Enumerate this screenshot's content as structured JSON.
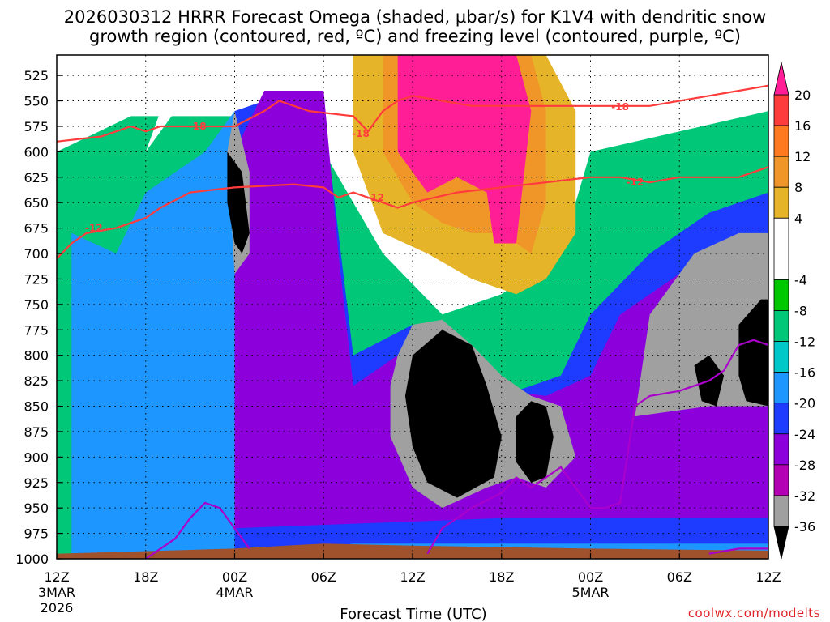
{
  "chart_data": {
    "type": "heatmap",
    "title_line1": "2026030312 HRRR Forecast Omega (shaded, µbar/s) for K1V4 with dendritic snow",
    "title_line2": "growth region (contoured, red, ºC) and freezing level (contoured, purple, ºC)",
    "xlabel": "Forecast Time (UTC)",
    "ylabel": "",
    "credit": "coolwx.com/modelts",
    "y_axis": {
      "reversed": true,
      "ylim": [
        1000,
        505
      ],
      "ticks": [
        525,
        550,
        575,
        600,
        625,
        650,
        675,
        700,
        725,
        750,
        775,
        800,
        825,
        850,
        875,
        900,
        925,
        950,
        975,
        1000
      ]
    },
    "x_axis": {
      "xlim_hours": [
        0,
        48
      ],
      "ticks": [
        {
          "hour": 0,
          "label": "12Z",
          "sub1": "3MAR",
          "sub2": "2026"
        },
        {
          "hour": 6,
          "label": "18Z",
          "sub1": "",
          "sub2": ""
        },
        {
          "hour": 12,
          "label": "00Z",
          "sub1": "4MAR",
          "sub2": ""
        },
        {
          "hour": 18,
          "label": "06Z",
          "sub1": "",
          "sub2": ""
        },
        {
          "hour": 24,
          "label": "12Z",
          "sub1": "",
          "sub2": ""
        },
        {
          "hour": 30,
          "label": "18Z",
          "sub1": "",
          "sub2": ""
        },
        {
          "hour": 36,
          "label": "00Z",
          "sub1": "5MAR",
          "sub2": ""
        },
        {
          "hour": 42,
          "label": "06Z",
          "sub1": "",
          "sub2": ""
        },
        {
          "hour": 48,
          "label": "12Z",
          "sub1": "",
          "sub2": ""
        }
      ]
    },
    "grid": true,
    "colorbar": {
      "labels": [
        "20",
        "16",
        "12",
        "8",
        "4",
        "-4",
        "-8",
        "-12",
        "-16",
        "-20",
        "-24",
        "-28",
        "-32",
        "-36"
      ],
      "bands": [
        {
          "lo": 16,
          "hi": 20,
          "color": "#ff3c3c"
        },
        {
          "lo": 12,
          "hi": 16,
          "color": "#ff7a1e"
        },
        {
          "lo": 8,
          "hi": 12,
          "color": "#f09628"
        },
        {
          "lo": 4,
          "hi": 8,
          "color": "#e6b428"
        },
        {
          "lo": -4,
          "hi": 4,
          "color": "#ffffff"
        },
        {
          "lo": -8,
          "hi": -4,
          "color": "#00c800"
        },
        {
          "lo": -12,
          "hi": -8,
          "color": "#00c878"
        },
        {
          "lo": -16,
          "hi": -12,
          "color": "#00c8c8"
        },
        {
          "lo": -20,
          "hi": -16,
          "color": "#1e96ff"
        },
        {
          "lo": -24,
          "hi": -20,
          "color": "#1e3cff"
        },
        {
          "lo": -28,
          "hi": -24,
          "color": "#8c00dc"
        },
        {
          "lo": -32,
          "hi": -28,
          "color": "#b400b4"
        },
        {
          "lo": -36,
          "hi": -32,
          "color": "#a0a0a0"
        }
      ],
      "top_color": "#ff1e96",
      "bottom_color": "#000000",
      "range": [
        -36,
        20
      ]
    },
    "fills": [
      {
        "color": "#00c878",
        "poly": [
          [
            0,
            1000
          ],
          [
            0,
            600
          ],
          [
            5,
            565
          ],
          [
            12,
            565
          ],
          [
            18,
            600
          ],
          [
            22,
            700
          ],
          [
            26,
            760
          ],
          [
            30,
            740
          ],
          [
            34,
            700
          ],
          [
            36,
            600
          ],
          [
            42,
            580
          ],
          [
            48,
            560
          ],
          [
            48,
            1000
          ]
        ]
      },
      {
        "color": "#ffffff",
        "poly": [
          [
            6,
            600
          ],
          [
            9,
            540
          ],
          [
            14,
            540
          ],
          [
            20,
            560
          ],
          [
            24,
            650
          ],
          [
            30,
            690
          ],
          [
            34,
            640
          ],
          [
            35,
            600
          ],
          [
            30,
            560
          ],
          [
            24,
            540
          ],
          [
            16,
            520
          ],
          [
            8,
            520
          ]
        ]
      },
      {
        "color": "#e6b428",
        "poly": [
          [
            20,
            505
          ],
          [
            33,
            505
          ],
          [
            35,
            560
          ],
          [
            35,
            680
          ],
          [
            33,
            725
          ],
          [
            31,
            740
          ],
          [
            28,
            725
          ],
          [
            25,
            700
          ],
          [
            22,
            680
          ],
          [
            20,
            600
          ]
        ]
      },
      {
        "color": "#f09628",
        "poly": [
          [
            22,
            505
          ],
          [
            32,
            505
          ],
          [
            33,
            560
          ],
          [
            33,
            650
          ],
          [
            32,
            700
          ],
          [
            30,
            680
          ],
          [
            28,
            680
          ],
          [
            26,
            670
          ],
          [
            24,
            650
          ],
          [
            22,
            600
          ]
        ]
      },
      {
        "color": "#ff1e96",
        "poly": [
          [
            23,
            505
          ],
          [
            31,
            505
          ],
          [
            32,
            560
          ],
          [
            31,
            690
          ],
          [
            29.5,
            690
          ],
          [
            29,
            640
          ],
          [
            27,
            625
          ],
          [
            25,
            640
          ],
          [
            23,
            600
          ]
        ]
      },
      {
        "color": "#1e96ff",
        "poly": [
          [
            1,
            1000
          ],
          [
            1,
            680
          ],
          [
            4,
            700
          ],
          [
            6,
            640
          ],
          [
            10,
            600
          ],
          [
            12,
            560
          ],
          [
            14,
            600
          ],
          [
            13,
            760
          ],
          [
            14,
            850
          ],
          [
            18,
            880
          ],
          [
            26,
            820
          ],
          [
            30,
            860
          ],
          [
            35,
            860
          ],
          [
            37,
            780
          ],
          [
            42,
            740
          ],
          [
            46,
            700
          ],
          [
            48,
            680
          ],
          [
            48,
            1000
          ]
        ]
      },
      {
        "color": "#1e3cff",
        "poly": [
          [
            12,
            1000
          ],
          [
            12,
            560
          ],
          [
            16,
            540
          ],
          [
            18,
            560
          ],
          [
            20,
            800
          ],
          [
            24,
            770
          ],
          [
            28,
            820
          ],
          [
            30,
            840
          ],
          [
            34,
            820
          ],
          [
            36,
            760
          ],
          [
            40,
            700
          ],
          [
            44,
            660
          ],
          [
            48,
            640
          ],
          [
            48,
            985
          ],
          [
            20,
            985
          ]
        ]
      },
      {
        "color": "#8c00dc",
        "poly": [
          [
            12,
            970
          ],
          [
            12,
            600
          ],
          [
            14,
            540
          ],
          [
            18,
            540
          ],
          [
            19,
            700
          ],
          [
            20,
            830
          ],
          [
            24,
            790
          ],
          [
            28,
            830
          ],
          [
            33,
            840
          ],
          [
            36,
            820
          ],
          [
            38,
            760
          ],
          [
            44,
            700
          ],
          [
            48,
            690
          ],
          [
            48,
            960
          ],
          [
            40,
            960
          ],
          [
            30,
            960
          ]
        ]
      },
      {
        "color": "#a0a0a0",
        "poly": [
          [
            12,
            720
          ],
          [
            11.5,
            600
          ],
          [
            12,
            560
          ],
          [
            13,
            620
          ],
          [
            13,
            700
          ]
        ]
      },
      {
        "color": "#a0a0a0",
        "poly": [
          [
            23,
            800
          ],
          [
            24,
            770
          ],
          [
            26,
            765
          ],
          [
            28,
            790
          ],
          [
            30,
            820
          ],
          [
            32,
            840
          ],
          [
            34,
            850
          ],
          [
            35,
            900
          ],
          [
            33,
            930
          ],
          [
            31,
            920
          ],
          [
            29,
            930
          ],
          [
            26,
            950
          ],
          [
            24,
            930
          ],
          [
            22.5,
            880
          ],
          [
            22.5,
            830
          ]
        ]
      },
      {
        "color": "#a0a0a0",
        "poly": [
          [
            39,
            860
          ],
          [
            40,
            760
          ],
          [
            43,
            700
          ],
          [
            46,
            680
          ],
          [
            48,
            680
          ],
          [
            48,
            850
          ],
          [
            44,
            850
          ]
        ]
      },
      {
        "color": "#000000",
        "poly": [
          [
            11.5,
            600
          ],
          [
            12.5,
            620
          ],
          [
            13,
            680
          ],
          [
            12.5,
            700
          ],
          [
            12,
            690
          ],
          [
            11.5,
            650
          ]
        ]
      },
      {
        "color": "#000000",
        "poly": [
          [
            24,
            800
          ],
          [
            26,
            775
          ],
          [
            28,
            790
          ],
          [
            29,
            830
          ],
          [
            30,
            880
          ],
          [
            29.5,
            920
          ],
          [
            27,
            940
          ],
          [
            25,
            925
          ],
          [
            24,
            890
          ],
          [
            23.5,
            840
          ]
        ]
      },
      {
        "color": "#000000",
        "poly": [
          [
            31,
            860
          ],
          [
            32,
            845
          ],
          [
            33,
            850
          ],
          [
            33.5,
            880
          ],
          [
            33,
            920
          ],
          [
            32,
            925
          ],
          [
            31,
            905
          ]
        ]
      },
      {
        "color": "#000000",
        "poly": [
          [
            43,
            810
          ],
          [
            44,
            800
          ],
          [
            45,
            820
          ],
          [
            44.5,
            850
          ],
          [
            43.5,
            845
          ]
        ]
      },
      {
        "color": "#000000",
        "poly": [
          [
            46,
            770
          ],
          [
            47.5,
            745
          ],
          [
            48,
            745
          ],
          [
            48,
            850
          ],
          [
            46.5,
            845
          ],
          [
            46,
            820
          ]
        ]
      }
    ],
    "dgz_contours": [
      {
        "label": "-18",
        "color": "#ff3c3c",
        "points": [
          [
            0,
            590
          ],
          [
            3,
            585
          ],
          [
            5,
            575
          ],
          [
            6,
            580
          ],
          [
            7,
            575
          ],
          [
            9,
            575
          ],
          [
            12,
            575
          ],
          [
            14,
            560
          ],
          [
            15,
            550
          ],
          [
            17,
            560
          ],
          [
            20,
            565
          ],
          [
            21,
            580
          ],
          [
            22,
            560
          ],
          [
            23,
            550
          ],
          [
            24,
            545
          ],
          [
            26,
            550
          ],
          [
            28,
            555
          ],
          [
            32,
            555
          ],
          [
            36,
            555
          ],
          [
            38,
            555
          ],
          [
            40,
            555
          ],
          [
            44,
            545
          ],
          [
            48,
            535
          ]
        ],
        "label_at": [
          9.5,
          575
        ]
      },
      {
        "label": "-12",
        "color": "#ff3c3c",
        "points": [
          [
            0,
            705
          ],
          [
            1,
            690
          ],
          [
            2,
            680
          ],
          [
            4,
            675
          ],
          [
            6,
            665
          ],
          [
            7,
            655
          ],
          [
            9,
            640
          ],
          [
            12,
            635
          ],
          [
            16,
            632
          ],
          [
            18,
            635
          ],
          [
            19,
            645
          ],
          [
            20,
            640
          ],
          [
            22,
            650
          ],
          [
            23,
            655
          ],
          [
            24,
            650
          ],
          [
            27,
            640
          ],
          [
            30,
            635
          ],
          [
            33,
            630
          ],
          [
            36,
            625
          ],
          [
            38,
            625
          ],
          [
            40,
            630
          ],
          [
            42,
            625
          ],
          [
            44,
            625
          ],
          [
            46,
            625
          ],
          [
            48,
            615
          ]
        ],
        "label_at": [
          2.5,
          675
        ]
      },
      {
        "label": "-12",
        "color": "#ff3c3c",
        "points": [],
        "label_at": [
          21.5,
          645
        ]
      },
      {
        "label": "-12",
        "color": "#ff3c3c",
        "points": [],
        "label_at": [
          39,
          630
        ]
      },
      {
        "label": "-18",
        "color": "#ff3c3c",
        "points": [],
        "label_at": [
          20.5,
          582
        ]
      },
      {
        "label": "-18",
        "color": "#ff3c3c",
        "points": [],
        "label_at": [
          38,
          556
        ]
      }
    ],
    "freezing_contours": [
      {
        "color": "#aa00cc",
        "points": [
          [
            6,
            1000
          ],
          [
            8,
            980
          ],
          [
            9,
            960
          ],
          [
            10,
            945
          ],
          [
            11,
            950
          ],
          [
            12,
            970
          ],
          [
            13,
            990
          ]
        ]
      },
      {
        "color": "#aa00cc",
        "points": [
          [
            25,
            995
          ],
          [
            26,
            970
          ],
          [
            28,
            950
          ],
          [
            30,
            935
          ],
          [
            31,
            920
          ],
          [
            32,
            930
          ],
          [
            33,
            920
          ],
          [
            34,
            910
          ],
          [
            35,
            930
          ],
          [
            36,
            950
          ],
          [
            37,
            950
          ],
          [
            38,
            945
          ],
          [
            39,
            850
          ],
          [
            40,
            840
          ],
          [
            42,
            835
          ],
          [
            44,
            825
          ],
          [
            45,
            815
          ],
          [
            46,
            790
          ],
          [
            47,
            785
          ],
          [
            48,
            790
          ]
        ]
      },
      {
        "color": "#aa00cc",
        "points": [
          [
            44,
            995
          ],
          [
            46,
            990
          ],
          [
            48,
            990
          ]
        ]
      }
    ],
    "ground": {
      "color": "#a0522d",
      "top_pressure": [
        [
          0,
          995
        ],
        [
          12,
          990
        ],
        [
          18,
          985
        ],
        [
          24,
          987
        ],
        [
          36,
          990
        ],
        [
          48,
          992
        ]
      ]
    }
  }
}
